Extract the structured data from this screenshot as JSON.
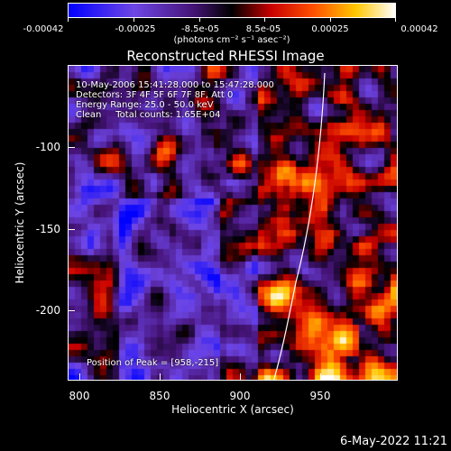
{
  "colorbar": {
    "tick_labels": [
      "-0.00042",
      "-0.00025",
      "-8.5e-05",
      "8.5e-05",
      "0.00025",
      "0.00042"
    ],
    "unit": "(photons cm⁻² s⁻¹ asec⁻²)"
  },
  "title": "Reconstructed RHESSI Image",
  "annotations": {
    "time_range": "10-May-2006 15:41:28.000 to 15:47:28.000",
    "detectors": "Detectors: 3F 4F 5F 6F 7F 8F, Att 0",
    "energy": "Energy Range: 25.0 - 50.0 keV",
    "clean": "Clean     Total counts: 1.65E+04",
    "peak": "Position of Peak = [958,-215]"
  },
  "axes": {
    "xlabel": "Heliocentric X (arcsec)",
    "ylabel": "Heliocentric Y (arcsec)",
    "xticks": [
      "800",
      "850",
      "900",
      "950"
    ],
    "yticks": [
      "-100",
      "-150",
      "-200"
    ]
  },
  "timestamp": "6-May-2022 11:21"
}
